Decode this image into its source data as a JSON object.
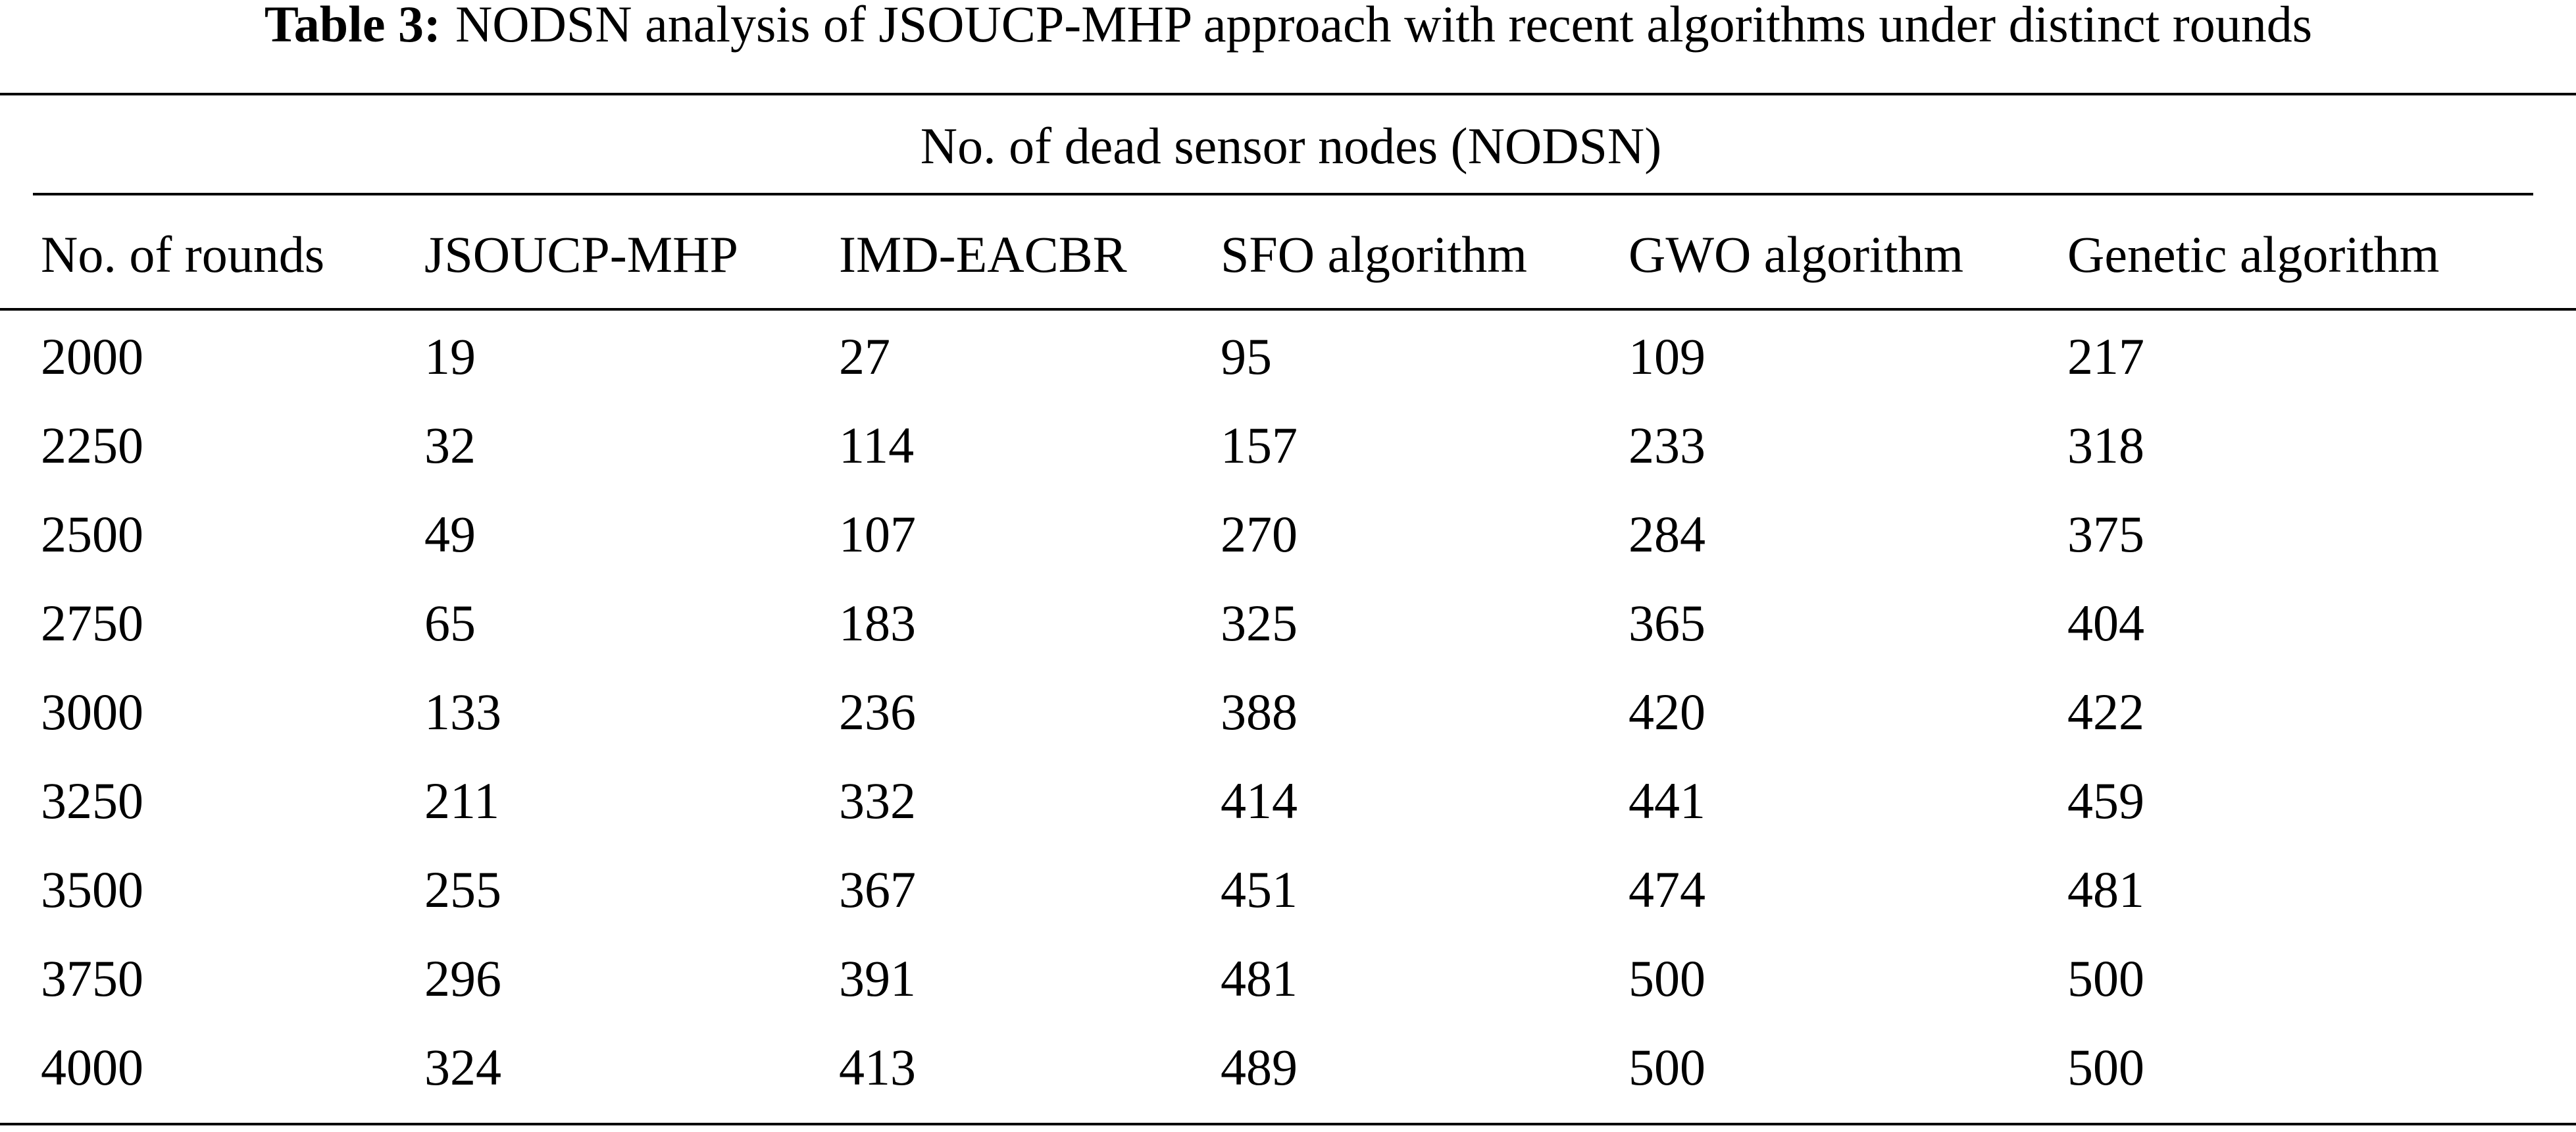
{
  "caption": {
    "label": "Table 3:",
    "text": "NODSN analysis of JSOUCP-MHP approach with recent algorithms under distinct rounds"
  },
  "table": {
    "group_header": "No. of dead sensor nodes (NODSN)",
    "columns": [
      "No. of rounds",
      "JSOUCP-MHP",
      "IMD-EACBR",
      "SFO algorithm",
      "GWO algorithm",
      "Genetic algorithm"
    ],
    "rows": [
      [
        2000,
        19,
        27,
        95,
        109,
        217
      ],
      [
        2250,
        32,
        114,
        157,
        233,
        318
      ],
      [
        2500,
        49,
        107,
        270,
        284,
        375
      ],
      [
        2750,
        65,
        183,
        325,
        365,
        404
      ],
      [
        3000,
        133,
        236,
        388,
        420,
        422
      ],
      [
        3250,
        211,
        332,
        414,
        441,
        459
      ],
      [
        3500,
        255,
        367,
        451,
        474,
        481
      ],
      [
        3750,
        296,
        391,
        481,
        500,
        500
      ],
      [
        4000,
        324,
        413,
        489,
        500,
        500
      ]
    ]
  }
}
